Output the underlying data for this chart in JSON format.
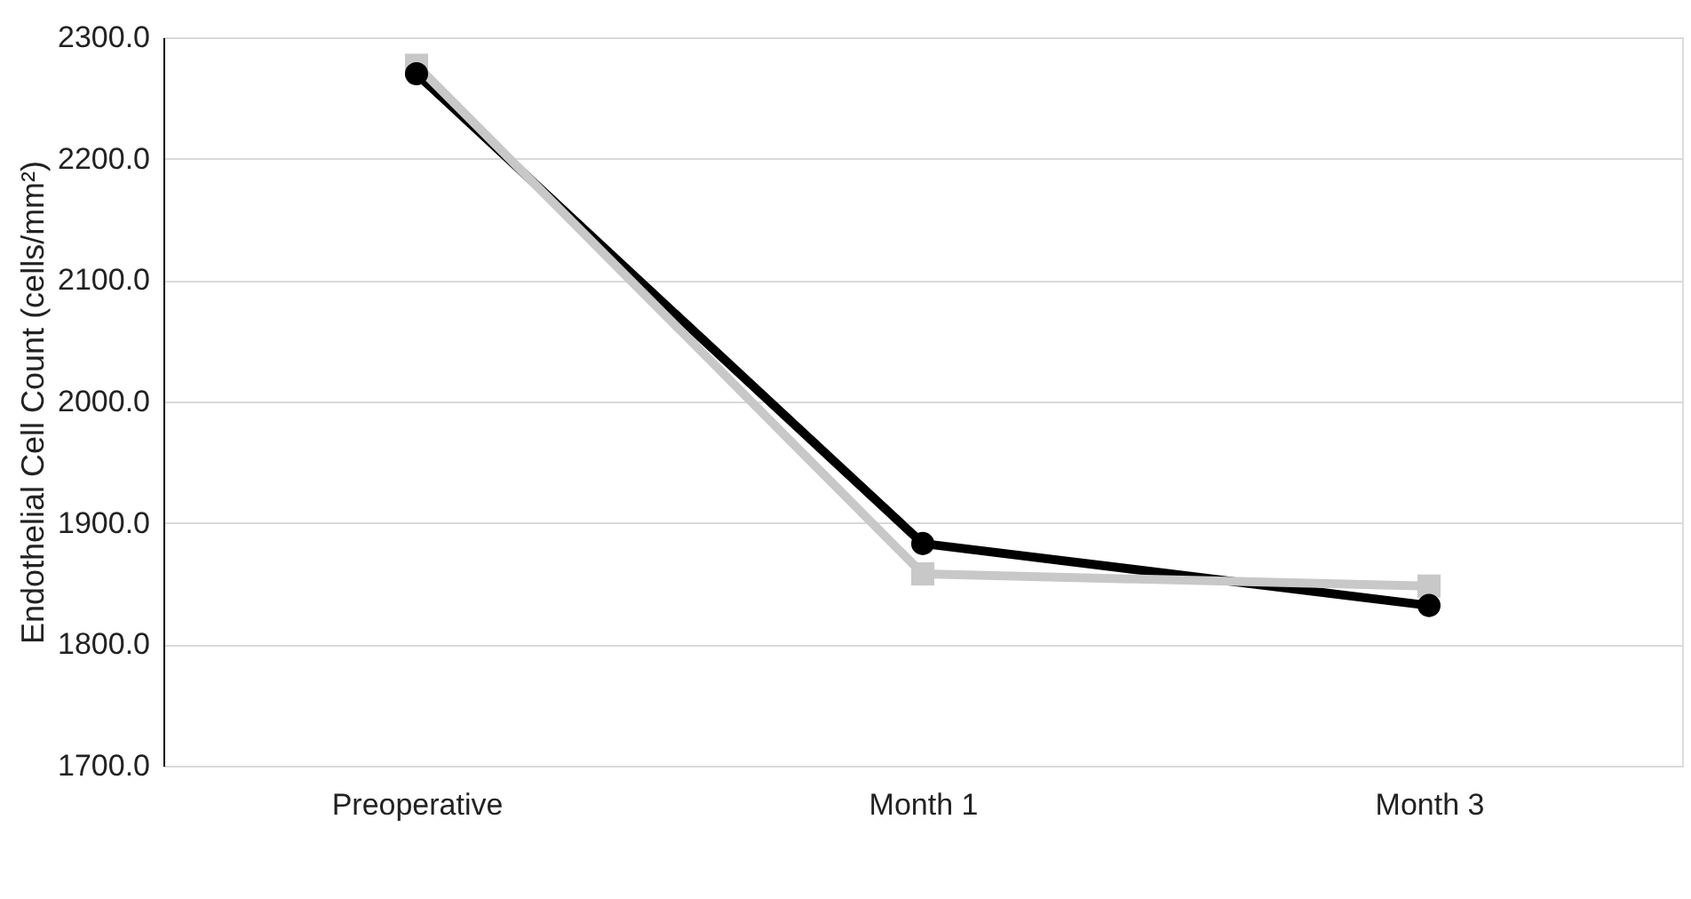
{
  "chart_data": {
    "type": "line",
    "ylabel": "Endothelial Cell Count (cells/mm²)",
    "categories": [
      "Preoperative",
      "Month 1",
      "Month 3"
    ],
    "series": [
      {
        "color": "#000000",
        "marker": "circle",
        "values": [
          2270,
          1883,
          1832
        ]
      },
      {
        "color": "#c8c8c8",
        "marker": "square",
        "values": [
          2277,
          1858,
          1848
        ]
      }
    ],
    "ylim": [
      1700,
      2300
    ],
    "yticks": [
      {
        "value": 1700,
        "label": "1700.0"
      },
      {
        "value": 1800,
        "label": "1800.0"
      },
      {
        "value": 1900,
        "label": "1900.0"
      },
      {
        "value": 2000,
        "label": "2000.0"
      },
      {
        "value": 2100,
        "label": "2100.0"
      },
      {
        "value": 2200,
        "label": "2200.0"
      },
      {
        "value": 2300,
        "label": "2300.0"
      }
    ],
    "grid": "y",
    "line_style": "solid"
  }
}
